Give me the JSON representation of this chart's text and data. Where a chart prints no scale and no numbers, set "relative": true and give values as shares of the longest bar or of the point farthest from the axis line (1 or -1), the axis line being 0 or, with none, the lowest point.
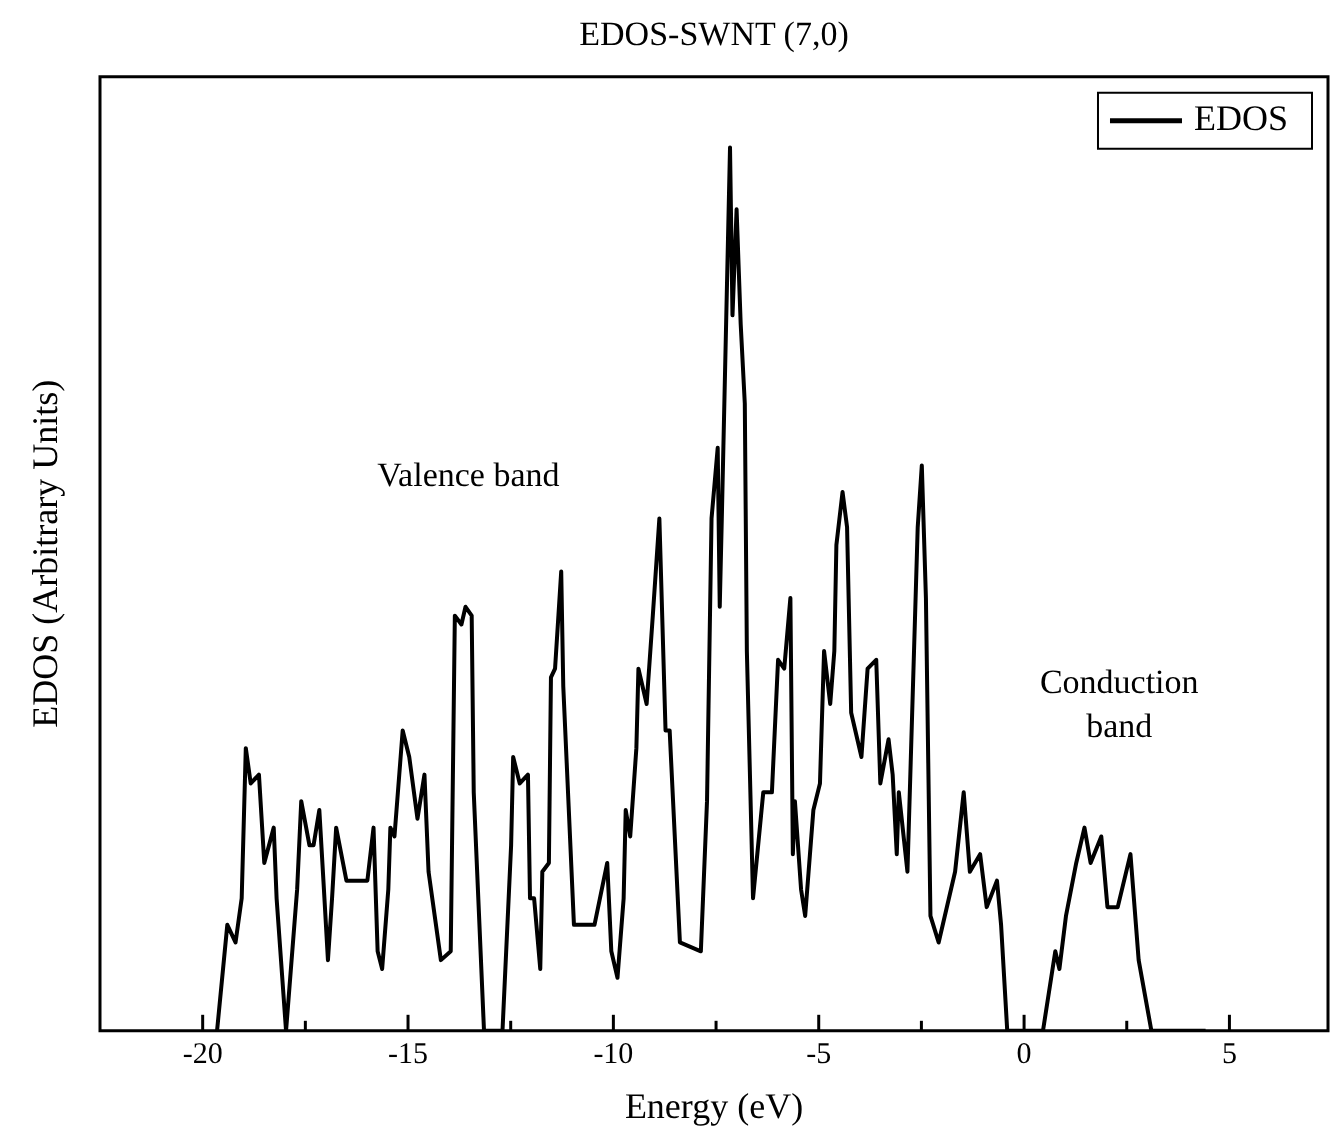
{
  "chart_data": {
    "type": "line",
    "title": "EDOS-SWNT (7,0)",
    "xlabel": "Energy (eV)",
    "ylabel": "EDOS (Arbitrary Units)",
    "relative": true,
    "xlim": [
      -22.5,
      7.4
    ],
    "xticks": [
      -20,
      {
        "value": -17.5,
        "label": null
      },
      -15,
      {
        "value": -12.5,
        "label": null
      },
      -10,
      {
        "value": -7.5,
        "label": null
      },
      -5,
      {
        "value": -2.5,
        "label": null
      },
      0,
      {
        "value": 2.5,
        "label": null
      },
      5
    ],
    "legend": "top right",
    "grid": false,
    "marker": "none",
    "line_style": "solid",
    "annotations": [
      "Valence band",
      "Conduction band"
    ],
    "series": [
      {
        "name": "EDOS",
        "color": "#000000",
        "x": [
          -19.65,
          -19.4,
          -19.2,
          -19.05,
          -18.95,
          -18.83,
          -18.63,
          -18.5,
          -18.27,
          -18.2,
          -17.97,
          -17.7,
          -17.6,
          -17.4,
          -17.3,
          -17.16,
          -17.06,
          -16.95,
          -16.85,
          -16.75,
          -16.5,
          -15.99,
          -15.84,
          -15.74,
          -15.63,
          -15.48,
          -15.43,
          -15.33,
          -15.13,
          -14.97,
          -14.77,
          -14.6,
          -14.5,
          -14.2,
          -13.96,
          -13.86,
          -13.7,
          -13.6,
          -13.45,
          -13.4,
          -13.15,
          -12.7,
          -12.49,
          -12.44,
          -12.28,
          -12.08,
          -12.03,
          -11.93,
          -11.78,
          -11.73,
          -11.57,
          -11.52,
          -11.42,
          -11.27,
          -11.22,
          -10.96,
          -10.46,
          -10.15,
          -10.05,
          -9.9,
          -9.75,
          -9.7,
          -9.59,
          -9.44,
          -9.39,
          -9.19,
          -9.04,
          -8.88,
          -8.73,
          -8.63,
          -8.38,
          -7.87,
          -7.72,
          -7.61,
          -7.46,
          -7.41,
          -7.36,
          -7.16,
          -7.1,
          -7.0,
          -6.9,
          -6.8,
          -6.75,
          -6.6,
          -6.35,
          -6.14,
          -6.09,
          -5.99,
          -5.84,
          -5.69,
          -5.63,
          -5.58,
          -5.43,
          -5.33,
          -5.13,
          -4.97,
          -4.87,
          -4.72,
          -4.62,
          -4.57,
          -4.42,
          -4.31,
          -4.21,
          -3.96,
          -3.81,
          -3.6,
          -3.5,
          -3.3,
          -3.2,
          -3.1,
          -3.05,
          -2.84,
          -2.59,
          -2.49,
          -2.39,
          -2.28,
          -2.08,
          -1.68,
          -1.47,
          -1.32,
          -1.07,
          -0.91,
          -0.66,
          -0.56,
          -0.41,
          0.46,
          0.76,
          0.86,
          1.02,
          1.27,
          1.47,
          1.62,
          1.88,
          2.03,
          2.28,
          2.59,
          2.79,
          3.1,
          4.42
        ],
        "values": [
          0,
          0.12,
          0.1,
          0.15,
          0.32,
          0.28,
          0.29,
          0.19,
          0.23,
          0.15,
          0,
          0.16,
          0.26,
          0.21,
          0.21,
          0.25,
          0.17,
          0.08,
          0.15,
          0.23,
          0.17,
          0.17,
          0.23,
          0.09,
          0.07,
          0.16,
          0.23,
          0.22,
          0.34,
          0.31,
          0.24,
          0.29,
          0.18,
          0.08,
          0.09,
          0.47,
          0.46,
          0.48,
          0.47,
          0.27,
          0,
          0,
          0.21,
          0.31,
          0.28,
          0.29,
          0.15,
          0.15,
          0.07,
          0.18,
          0.19,
          0.4,
          0.41,
          0.52,
          0.39,
          0.12,
          0.12,
          0.19,
          0.09,
          0.06,
          0.15,
          0.25,
          0.22,
          0.32,
          0.41,
          0.37,
          0.47,
          0.58,
          0.34,
          0.34,
          0.1,
          0.09,
          0.26,
          0.58,
          0.66,
          0.48,
          0.58,
          1.0,
          0.81,
          0.93,
          0.8,
          0.71,
          0.43,
          0.15,
          0.27,
          0.27,
          0.32,
          0.42,
          0.41,
          0.49,
          0.2,
          0.26,
          0.16,
          0.13,
          0.25,
          0.28,
          0.43,
          0.37,
          0.43,
          0.55,
          0.61,
          0.57,
          0.36,
          0.31,
          0.41,
          0.42,
          0.28,
          0.33,
          0.29,
          0.2,
          0.27,
          0.18,
          0.57,
          0.64,
          0.49,
          0.13,
          0.1,
          0.18,
          0.27,
          0.18,
          0.2,
          0.14,
          0.17,
          0.12,
          0,
          0,
          0.09,
          0.07,
          0.13,
          0.19,
          0.23,
          0.19,
          0.22,
          0.14,
          0.14,
          0.2,
          0.08,
          0,
          0
        ]
      }
    ]
  }
}
